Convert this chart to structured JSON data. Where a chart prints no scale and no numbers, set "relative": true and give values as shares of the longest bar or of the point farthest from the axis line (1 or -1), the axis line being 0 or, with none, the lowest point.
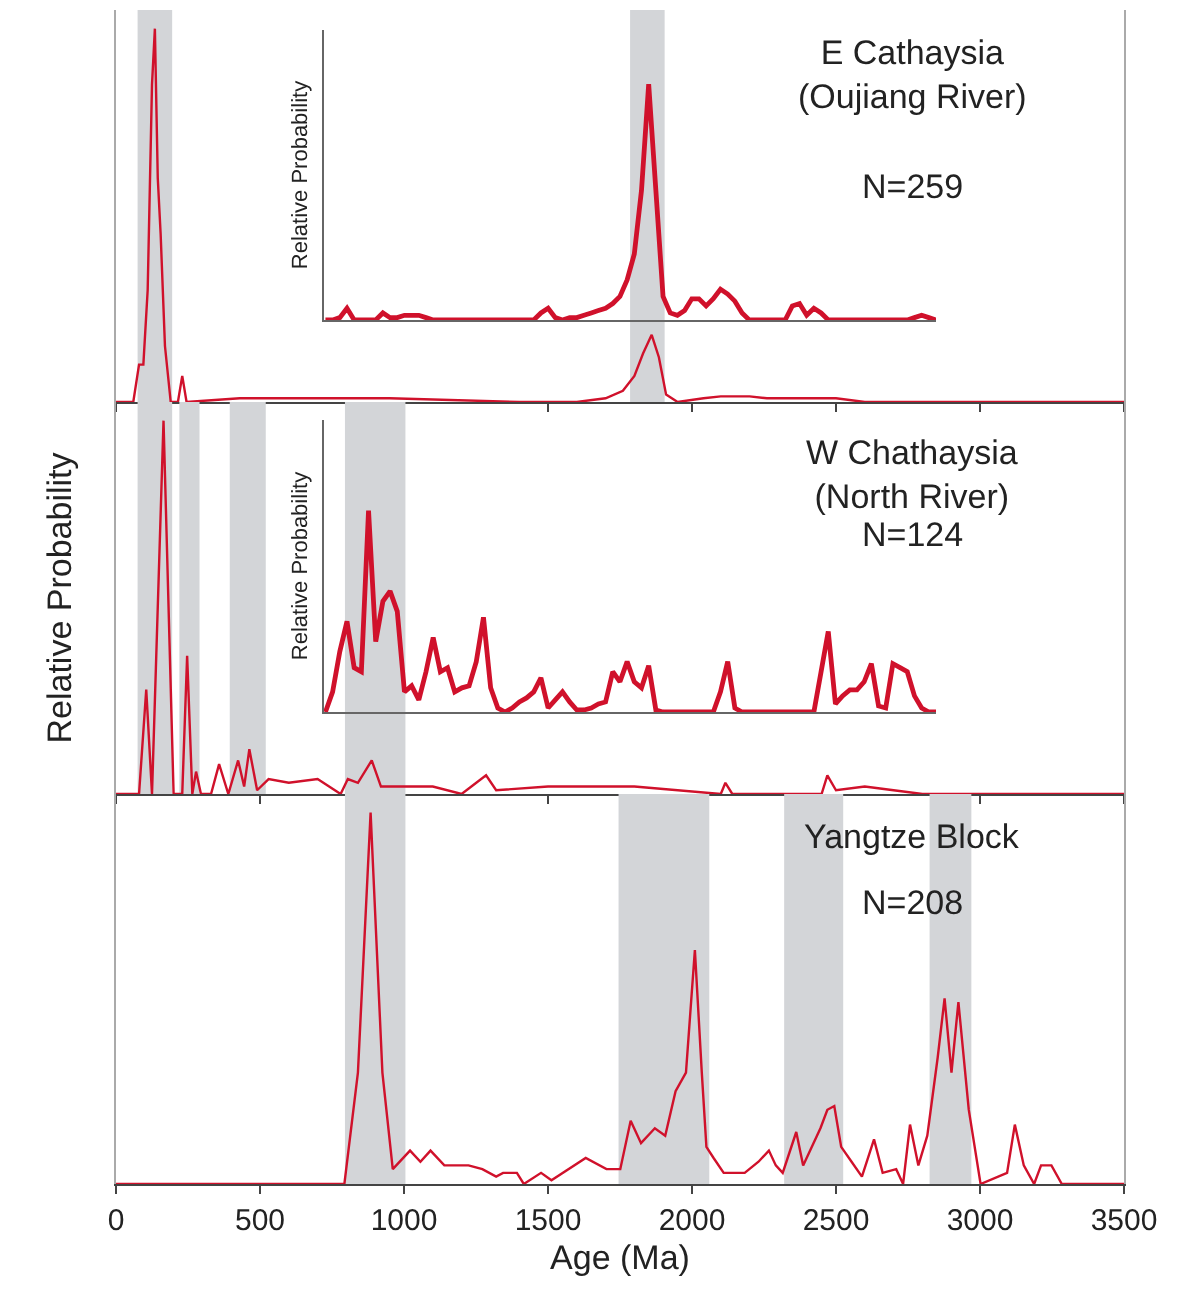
{
  "chart_data": [
    {
      "type": "line",
      "title": "E Cathaysia\n(Oujiang River)",
      "subtitle": "N=259",
      "relative": true,
      "tick_labels": false,
      "xlim": [
        0,
        3500
      ],
      "xticks": [
        0,
        500,
        1000,
        1500,
        2000,
        2500,
        3000,
        3500
      ],
      "x": [
        0,
        60,
        80,
        95,
        110,
        125,
        135,
        145,
        155,
        170,
        190,
        215,
        230,
        245,
        430,
        550,
        950,
        1400,
        1600,
        1700,
        1760,
        1800,
        1830,
        1860,
        1885,
        1910,
        1950,
        2040,
        2100,
        2200,
        2260,
        2500,
        2600,
        3500
      ],
      "series": [
        {
          "color": "#d0112b",
          "values": [
            0,
            0,
            0.1,
            0.1,
            0.3,
            0.85,
            1,
            0.6,
            0.45,
            0.15,
            0,
            0,
            0.07,
            0,
            0.01,
            0.01,
            0.01,
            0,
            0,
            0.01,
            0.03,
            0.07,
            0.13,
            0.18,
            0.12,
            0.02,
            0,
            0.01,
            0.015,
            0.015,
            0.01,
            0.01,
            0,
            0
          ]
        }
      ],
      "bands": [
        {
          "axis": "x",
          "from": 75,
          "to": 195,
          "color": "#d3d5d8"
        },
        {
          "axis": "x",
          "from": 1785,
          "to": 1905,
          "color": "#d3d5d8"
        }
      ]
    },
    {
      "type": "line",
      "ylabel": "Relative Probability",
      "relative": true,
      "tick_labels": false,
      "categories": [
        null,
        null,
        null,
        null,
        null,
        null,
        null,
        null,
        null,
        null,
        null,
        null,
        null,
        null,
        null,
        null,
        null,
        null,
        null,
        null,
        null,
        null,
        null,
        null,
        null,
        null,
        null,
        null,
        null,
        null,
        null,
        null,
        null,
        null,
        null,
        null,
        null,
        null,
        null,
        null,
        null,
        null,
        null,
        null,
        null,
        null,
        null,
        null,
        null,
        null,
        null,
        null,
        null,
        null,
        null,
        null,
        null,
        null,
        null,
        null,
        null,
        null,
        null,
        null,
        null,
        null,
        null,
        null,
        null,
        null,
        null,
        null,
        null,
        null,
        null,
        null,
        null,
        null,
        null,
        null,
        null,
        null,
        null,
        null,
        null,
        null
      ],
      "series": [
        {
          "color": "#d0112b",
          "values": [
            0,
            0,
            0.01,
            0.05,
            0,
            0,
            0,
            0,
            0.03,
            0.01,
            0.01,
            0.02,
            0.02,
            0.02,
            0.01,
            0,
            0,
            0,
            0,
            0,
            0,
            0,
            0,
            0,
            0,
            0,
            0,
            0,
            0,
            0,
            0.03,
            0.05,
            0.01,
            0,
            0.01,
            0.01,
            0.02,
            0.03,
            0.04,
            0.05,
            0.07,
            0.1,
            0.17,
            0.28,
            0.55,
            1,
            0.55,
            0.1,
            0.03,
            0.02,
            0.04,
            0.09,
            0.09,
            0.06,
            0.09,
            0.13,
            0.11,
            0.08,
            0.03,
            0,
            0,
            0,
            0,
            0,
            0,
            0.06,
            0.07,
            0.02,
            0.05,
            0.03,
            0,
            0,
            0,
            0,
            0,
            0,
            0,
            0,
            0,
            0,
            0,
            0,
            0.01,
            0.02,
            0.01,
            0
          ]
        }
      ]
    },
    {
      "type": "line",
      "title": "W Chathaysia\n(North River)",
      "subtitle": "N=124",
      "ylabel": "Relative Probability",
      "relative": true,
      "tick_labels": false,
      "xlim": [
        0,
        3500
      ],
      "xticks": [
        0,
        500,
        1000,
        1500,
        2000,
        2500,
        3000,
        3500
      ],
      "x": [
        0,
        80,
        105,
        125,
        165,
        200,
        230,
        247,
        265,
        278,
        295,
        330,
        358,
        390,
        424,
        445,
        463,
        490,
        530,
        600,
        700,
        780,
        805,
        840,
        888,
        920,
        1000,
        1100,
        1200,
        1285,
        1320,
        1500,
        1800,
        2100,
        2116,
        2140,
        2450,
        2470,
        2500,
        2600,
        2700,
        2800,
        3500
      ],
      "series": [
        {
          "color": "#d0112b",
          "values": [
            0,
            0,
            0.28,
            0,
            1,
            0,
            0,
            0.37,
            0,
            0.06,
            0,
            0,
            0.08,
            0,
            0.09,
            0.02,
            0.12,
            0.01,
            0.04,
            0.03,
            0.04,
            0,
            0.04,
            0.03,
            0.09,
            0.02,
            0.02,
            0.02,
            0,
            0.05,
            0.01,
            0.02,
            0.02,
            0,
            0.03,
            0,
            0,
            0.05,
            0.01,
            0.02,
            0.01,
            0,
            0
          ]
        }
      ],
      "bands": [
        {
          "axis": "x",
          "from": 75,
          "to": 195,
          "color": "#d3d5d8"
        },
        {
          "axis": "x",
          "from": 220,
          "to": 290,
          "color": "#d3d5d8"
        },
        {
          "axis": "x",
          "from": 395,
          "to": 520,
          "color": "#d3d5d8"
        },
        {
          "axis": "x",
          "from": 795,
          "to": 1005,
          "color": "#d3d5d8"
        }
      ]
    },
    {
      "type": "line",
      "ylabel": "Relative Probability",
      "relative": true,
      "tick_labels": false,
      "categories": [
        null,
        null,
        null,
        null,
        null,
        null,
        null,
        null,
        null,
        null,
        null,
        null,
        null,
        null,
        null,
        null,
        null,
        null,
        null,
        null,
        null,
        null,
        null,
        null,
        null,
        null,
        null,
        null,
        null,
        null,
        null,
        null,
        null,
        null,
        null,
        null,
        null,
        null,
        null,
        null,
        null,
        null,
        null,
        null,
        null,
        null,
        null,
        null,
        null,
        null,
        null,
        null,
        null,
        null,
        null,
        null,
        null,
        null,
        null,
        null,
        null,
        null,
        null,
        null,
        null,
        null,
        null,
        null,
        null,
        null,
        null,
        null,
        null,
        null,
        null,
        null,
        null,
        null,
        null,
        null,
        null,
        null,
        null,
        null,
        null,
        null
      ],
      "series": [
        {
          "color": "#d0112b",
          "values": [
            0,
            0.1,
            0.3,
            0.45,
            0.22,
            0.2,
            1,
            0.35,
            0.55,
            0.6,
            0.5,
            0.1,
            0.13,
            0.06,
            0.2,
            0.37,
            0.2,
            0.22,
            0.1,
            0.12,
            0.13,
            0.25,
            0.47,
            0.12,
            0.02,
            0,
            0.02,
            0.05,
            0.07,
            0.1,
            0.17,
            0.02,
            0.06,
            0.1,
            0.05,
            0.01,
            0.01,
            0.02,
            0.04,
            0.05,
            0.2,
            0.15,
            0.25,
            0.15,
            0.12,
            0.23,
            0.01,
            0,
            0,
            0,
            0,
            0,
            0,
            0,
            0,
            0.1,
            0.25,
            0.02,
            0,
            0,
            0,
            0,
            0,
            0,
            0,
            0,
            0,
            0,
            0,
            0.2,
            0.4,
            0.04,
            0.08,
            0.11,
            0.11,
            0.15,
            0.24,
            0.03,
            0.02,
            0.24,
            0.22,
            0.2,
            0.08,
            0.02,
            0,
            0
          ]
        }
      ]
    },
    {
      "type": "line",
      "title": "Yangtze Block",
      "subtitle": "N=208",
      "xlabel": "Age (Ma)",
      "relative": true,
      "tick_labels": "x",
      "xlim": [
        0,
        3500
      ],
      "xticks": [
        0,
        500,
        1000,
        1500,
        2000,
        2500,
        3000,
        3500
      ],
      "x": [
        0,
        793,
        840,
        884,
        925,
        961,
        1021,
        1057,
        1092,
        1140,
        1224,
        1272,
        1320,
        1344,
        1392,
        1416,
        1476,
        1512,
        1631,
        1703,
        1751,
        1787,
        1823,
        1871,
        1907,
        1943,
        1979,
        2010,
        2034,
        2050,
        2075,
        2110,
        2183,
        2231,
        2267,
        2291,
        2315,
        2362,
        2386,
        2446,
        2470,
        2494,
        2518,
        2554,
        2590,
        2632,
        2662,
        2709,
        2733,
        2757,
        2786,
        2817,
        2853,
        2877,
        2901,
        2925,
        2961,
        3002,
        3094,
        3121,
        3152,
        3188,
        3212,
        3248,
        3284,
        3500
      ],
      "series": [
        {
          "color": "#d0112b",
          "values": [
            0,
            0,
            0.3,
            1,
            0.3,
            0.04,
            0.09,
            0.06,
            0.09,
            0.05,
            0.05,
            0.04,
            0.02,
            0.03,
            0.03,
            0,
            0.03,
            0.01,
            0.07,
            0.04,
            0.04,
            0.17,
            0.11,
            0.15,
            0.13,
            0.25,
            0.3,
            0.63,
            0.3,
            0.1,
            0.07,
            0.03,
            0.03,
            0.06,
            0.09,
            0.05,
            0.03,
            0.14,
            0.05,
            0.15,
            0.2,
            0.21,
            0.1,
            0.06,
            0.02,
            0.12,
            0.03,
            0.04,
            0,
            0.16,
            0.05,
            0.13,
            0.34,
            0.5,
            0.3,
            0.49,
            0.2,
            0,
            0.03,
            0.16,
            0.05,
            0,
            0.05,
            0.05,
            0,
            0
          ]
        }
      ],
      "bands": [
        {
          "axis": "x",
          "from": 795,
          "to": 1005,
          "color": "#d3d5d8"
        },
        {
          "axis": "x",
          "from": 1745,
          "to": 2060,
          "color": "#d3d5d8"
        },
        {
          "axis": "x",
          "from": 2320,
          "to": 2525,
          "color": "#d3d5d8"
        },
        {
          "axis": "x",
          "from": 2825,
          "to": 2970,
          "color": "#d3d5d8"
        }
      ]
    }
  ]
}
